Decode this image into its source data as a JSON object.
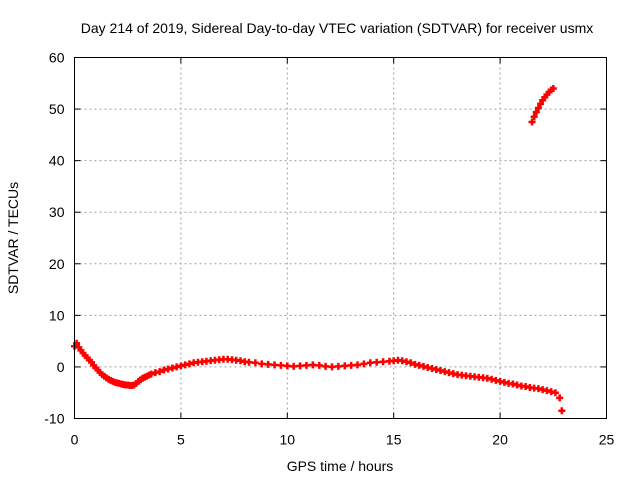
{
  "chart_data": {
    "type": "scatter",
    "title": "Day 214 of 2019, Sidereal Day-to-day VTEC variation (SDTVAR) for receiver usmx",
    "xlabel": "GPS time / hours",
    "ylabel": "SDTVAR / TECUs",
    "xlim": [
      0,
      25
    ],
    "ylim": [
      -10,
      60
    ],
    "xticks": [
      0,
      5,
      10,
      15,
      20,
      25
    ],
    "yticks": [
      -10,
      0,
      10,
      20,
      30,
      40,
      50,
      60
    ],
    "xtick_labels": [
      "0",
      "5",
      "10",
      "15",
      "20",
      "25"
    ],
    "ytick_labels": [
      "-10",
      "0",
      "10",
      "20",
      "30",
      "40",
      "50",
      "60"
    ],
    "grid": true,
    "marker": "+",
    "marker_color": "#ff0000",
    "series": [
      {
        "name": "SDTVAR",
        "x": [
          0.0,
          0.1,
          0.2,
          0.3,
          0.4,
          0.5,
          0.6,
          0.7,
          0.8,
          0.9,
          1.0,
          1.1,
          1.2,
          1.3,
          1.4,
          1.5,
          1.6,
          1.7,
          1.8,
          1.9,
          2.0,
          2.1,
          2.2,
          2.3,
          2.4,
          2.5,
          2.6,
          2.7,
          2.8,
          2.9,
          3.0,
          3.1,
          3.2,
          3.3,
          3.4,
          3.5,
          3.6,
          3.8,
          4.0,
          4.2,
          4.4,
          4.6,
          4.8,
          5.0,
          5.2,
          5.4,
          5.6,
          5.8,
          6.0,
          6.2,
          6.4,
          6.6,
          6.8,
          7.0,
          7.2,
          7.4,
          7.6,
          7.8,
          8.0,
          8.2,
          8.5,
          8.8,
          9.1,
          9.4,
          9.7,
          10.0,
          10.3,
          10.6,
          10.9,
          11.2,
          11.5,
          11.8,
          12.1,
          12.4,
          12.7,
          13.0,
          13.3,
          13.6,
          13.9,
          14.2,
          14.5,
          14.8,
          15.0,
          15.2,
          15.4,
          15.6,
          15.8,
          16.0,
          16.2,
          16.4,
          16.6,
          16.8,
          17.0,
          17.2,
          17.4,
          17.6,
          17.8,
          18.0,
          18.2,
          18.4,
          18.6,
          18.8,
          19.0,
          19.2,
          19.4,
          19.6,
          19.8,
          20.0,
          20.2,
          20.4,
          20.6,
          20.8,
          21.0,
          21.2,
          21.4,
          21.6,
          21.8,
          22.0,
          22.2,
          22.4,
          22.6,
          22.8,
          22.9,
          21.5,
          21.6,
          21.7,
          21.8,
          21.9,
          22.0,
          22.1,
          22.2,
          22.3,
          22.4,
          22.5
        ],
        "y": [
          4.0,
          4.6,
          3.8,
          3.2,
          2.7,
          2.2,
          1.8,
          1.3,
          0.9,
          0.3,
          -0.2,
          -0.6,
          -1.1,
          -1.5,
          -1.8,
          -2.1,
          -2.4,
          -2.6,
          -2.8,
          -3.0,
          -3.1,
          -3.2,
          -3.3,
          -3.4,
          -3.5,
          -3.5,
          -3.6,
          -3.6,
          -3.5,
          -3.2,
          -2.8,
          -2.5,
          -2.2,
          -2.0,
          -1.8,
          -1.6,
          -1.4,
          -1.1,
          -0.9,
          -0.6,
          -0.4,
          -0.2,
          0.0,
          0.2,
          0.4,
          0.6,
          0.8,
          0.9,
          1.0,
          1.1,
          1.2,
          1.3,
          1.4,
          1.5,
          1.5,
          1.4,
          1.3,
          1.2,
          1.0,
          0.9,
          0.8,
          0.6,
          0.5,
          0.4,
          0.3,
          0.2,
          0.1,
          0.2,
          0.3,
          0.4,
          0.3,
          0.1,
          0.0,
          0.1,
          0.2,
          0.3,
          0.4,
          0.6,
          0.8,
          0.9,
          1.0,
          1.1,
          1.2,
          1.3,
          1.2,
          1.0,
          0.8,
          0.5,
          0.3,
          0.1,
          -0.1,
          -0.3,
          -0.5,
          -0.7,
          -0.9,
          -1.1,
          -1.3,
          -1.5,
          -1.6,
          -1.7,
          -1.8,
          -1.9,
          -2.0,
          -2.1,
          -2.2,
          -2.4,
          -2.6,
          -2.8,
          -3.0,
          -3.2,
          -3.3,
          -3.5,
          -3.7,
          -3.8,
          -4.0,
          -4.1,
          -4.2,
          -4.4,
          -4.6,
          -4.8,
          -5.0,
          -6.0,
          -8.5,
          47.5,
          48.5,
          49.4,
          50.2,
          51.0,
          51.7,
          52.3,
          52.8,
          53.3,
          53.7,
          54.0
        ]
      }
    ]
  }
}
